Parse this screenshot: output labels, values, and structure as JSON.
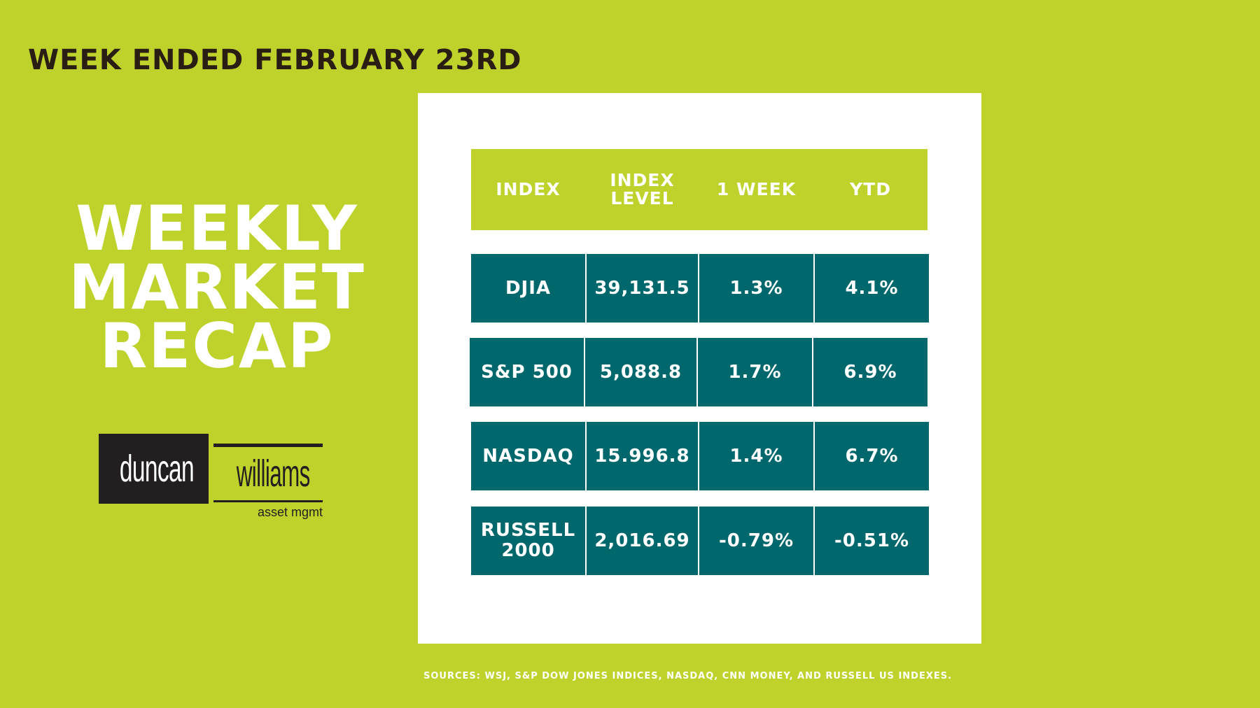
{
  "header": {
    "week_label": "WEEK ENDED FEBRUARY 23RD"
  },
  "title": {
    "line1": "WEEKLY",
    "line2": "MARKET",
    "line3": "RECAP"
  },
  "logo": {
    "word1": "duncan",
    "word2": "williams",
    "tagline": "asset mgmt"
  },
  "table": {
    "headers": [
      "INDEX",
      "INDEX LEVEL",
      "1 WEEK",
      "YTD"
    ],
    "header_index_level": [
      "INDEX",
      "LEVEL"
    ],
    "rows": [
      {
        "index": "DJIA",
        "level": "39,131.5",
        "week": "1.3%",
        "ytd": "4.1%"
      },
      {
        "index": "S&P 500",
        "level": "5,088.8",
        "week": "1.7%",
        "ytd": "6.9%"
      },
      {
        "index": "NASDAQ",
        "level": "15.996.8",
        "week": "1.4%",
        "ytd": "6.7%"
      },
      {
        "index": "RUSSELL\n2000",
        "level": "2,016.69",
        "week": "-0.79%",
        "ytd": "-0.51%"
      }
    ]
  },
  "footer": {
    "sources": "SOURCES: WSJ, S&P DOW JONES INDICES, NASDAQ, CNN  MONEY, AND  RUSSELL US INDEXES."
  },
  "colors": {
    "background": "#bed22b",
    "teal": "#00686c",
    "dark_text": "#2a1d14",
    "white": "#ffffff"
  }
}
